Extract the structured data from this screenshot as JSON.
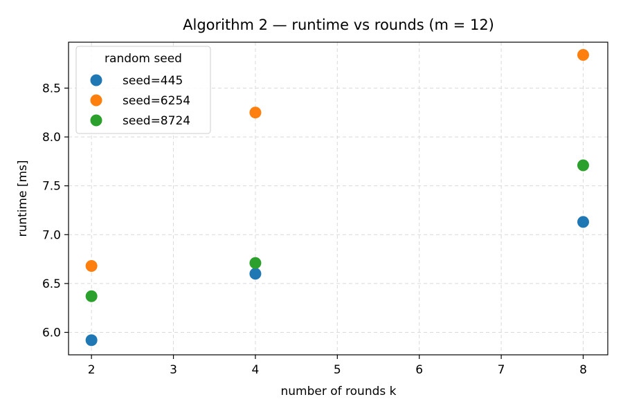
{
  "chart_data": {
    "type": "scatter",
    "title": "Algorithm 2 — runtime vs rounds  (m = 12)",
    "xlabel": "number of rounds  k",
    "ylabel": "runtime  [ms]",
    "xlim": [
      1.72,
      8.3
    ],
    "ylim": [
      5.77,
      8.97
    ],
    "xticks": [
      2,
      3,
      4,
      5,
      6,
      7,
      8
    ],
    "yticks": [
      6.0,
      6.5,
      7.0,
      7.5,
      8.0,
      8.5
    ],
    "ytick_labels": [
      "6.0",
      "6.5",
      "7.0",
      "7.5",
      "8.0",
      "8.5"
    ],
    "grid": true,
    "legend": {
      "title": "random seed",
      "placement": "top-left"
    },
    "series": [
      {
        "name": "seed=445",
        "color": "#1f77b4",
        "points": [
          {
            "x": 2,
            "y": 5.92
          },
          {
            "x": 4,
            "y": 6.6
          },
          {
            "x": 8,
            "y": 7.13
          }
        ]
      },
      {
        "name": "seed=6254",
        "color": "#ff7f0e",
        "points": [
          {
            "x": 2,
            "y": 6.68
          },
          {
            "x": 4,
            "y": 8.25
          },
          {
            "x": 8,
            "y": 8.84
          }
        ]
      },
      {
        "name": "seed=8724",
        "color": "#2ca02c",
        "points": [
          {
            "x": 2,
            "y": 6.37
          },
          {
            "x": 4,
            "y": 6.71
          },
          {
            "x": 8,
            "y": 7.71
          }
        ]
      }
    ]
  }
}
